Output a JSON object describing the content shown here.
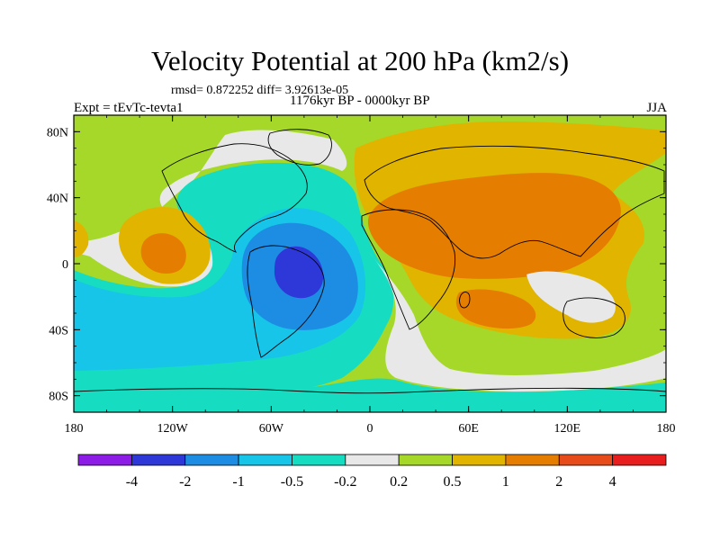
{
  "figure": {
    "title": "Velocity Potential at 200 hPa (km2/s)",
    "stats": "rmsd= 0.872252 diff= 3.92613e-05",
    "experiment": "Expt = tEvTc-tevta1",
    "period": "1176kyr BP - 0000kyr BP",
    "season": "JJA"
  },
  "map": {
    "projection": "cylindrical equidistant",
    "lon_range": [
      -180,
      180
    ],
    "lat_range": [
      -90,
      90
    ],
    "y_ticks": [
      {
        "lat": 80,
        "label": "80N"
      },
      {
        "lat": 40,
        "label": "40N"
      },
      {
        "lat": 0,
        "label": "0"
      },
      {
        "lat": -40,
        "label": "40S"
      },
      {
        "lat": -80,
        "label": "80S"
      }
    ],
    "x_ticks": [
      {
        "lon": -180,
        "label": "180"
      },
      {
        "lon": -120,
        "label": "120W"
      },
      {
        "lon": -60,
        "label": "60W"
      },
      {
        "lon": 0,
        "label": "0"
      },
      {
        "lon": 60,
        "label": "60E"
      },
      {
        "lon": 120,
        "label": "120E"
      },
      {
        "lon": 180,
        "label": "180"
      }
    ],
    "field_regions": [
      {
        "name": "background-positive",
        "color": "#a5d829",
        "level": "0.2 to 0.5"
      },
      {
        "name": "east-positive",
        "color": "#e1b400",
        "level": "0.5 to 1"
      },
      {
        "name": "asia-africa-max",
        "color": "#e57d00",
        "level": "1 to 2"
      },
      {
        "name": "pacific-positive",
        "color": "#e1b400",
        "level": "0.5 to 1"
      },
      {
        "name": "pacific-max",
        "color": "#e57d00",
        "level": "1 to 2"
      },
      {
        "name": "atlantic-negative",
        "color": "#16ddc1",
        "level": "-0.5 to -0.2"
      },
      {
        "name": "south-america-negative",
        "color": "#17c5e8",
        "level": "-1 to -0.5"
      },
      {
        "name": "brazil-negative",
        "color": "#1d8ce3",
        "level": "-2 to -1"
      },
      {
        "name": "brazil-min",
        "color": "#2e38d8",
        "level": "-4 to -2"
      }
    ]
  },
  "colorbar": {
    "colors": [
      "#8d1ce6",
      "#2e38d8",
      "#1d8ce3",
      "#17c5e8",
      "#16ddc1",
      "#e8e8e8",
      "#a5d829",
      "#e1b400",
      "#e57d00",
      "#e64b19",
      "#e81e1e"
    ],
    "labels": [
      "-4",
      "-2",
      "-1",
      "-0.5",
      "-0.2",
      "0.2",
      "0.5",
      "1",
      "2",
      "4"
    ]
  }
}
